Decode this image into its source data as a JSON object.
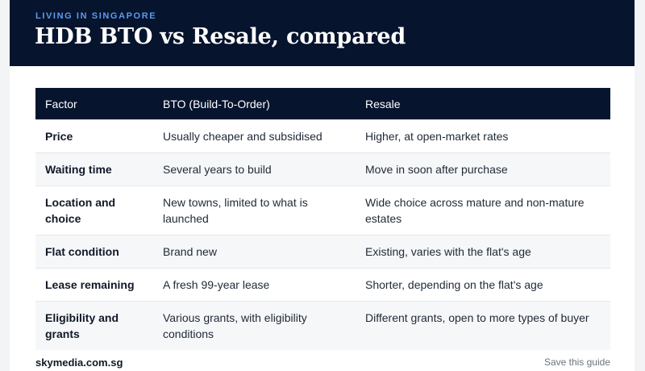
{
  "header": {
    "eyebrow": "LIVING IN SINGAPORE",
    "title": "HDB BTO vs Resale, compared"
  },
  "table": {
    "columns": [
      "Factor",
      "BTO (Build-To-Order)",
      "Resale"
    ],
    "rows": [
      {
        "factor": "Price",
        "bto": "Usually cheaper and subsidised",
        "resale": "Higher, at open-market rates"
      },
      {
        "factor": "Waiting time",
        "bto": "Several years to build",
        "resale": "Move in soon after purchase"
      },
      {
        "factor": "Location and choice",
        "bto": "New towns, limited to what is launched",
        "resale": "Wide choice across mature and non-mature estates"
      },
      {
        "factor": "Flat condition",
        "bto": "Brand new",
        "resale": "Existing, varies with the flat's age"
      },
      {
        "factor": "Lease remaining",
        "bto": "A fresh 99-year lease",
        "resale": "Shorter, depending on the flat's age"
      },
      {
        "factor": "Eligibility and grants",
        "bto": "Various grants, with eligibility conditions",
        "resale": "Different grants, open to more types of buyer"
      }
    ]
  },
  "footer": {
    "site": "skymedia.com.sg",
    "action": "Save this guide"
  }
}
